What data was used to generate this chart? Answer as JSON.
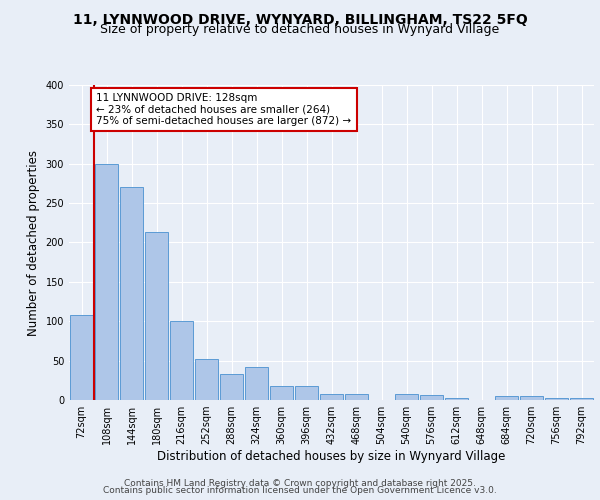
{
  "title_line1": "11, LYNNWOOD DRIVE, WYNYARD, BILLINGHAM, TS22 5FQ",
  "title_line2": "Size of property relative to detached houses in Wynyard Village",
  "xlabel": "Distribution of detached houses by size in Wynyard Village",
  "ylabel": "Number of detached properties",
  "bins": [
    "72sqm",
    "108sqm",
    "144sqm",
    "180sqm",
    "216sqm",
    "252sqm",
    "288sqm",
    "324sqm",
    "360sqm",
    "396sqm",
    "432sqm",
    "468sqm",
    "504sqm",
    "540sqm",
    "576sqm",
    "612sqm",
    "648sqm",
    "684sqm",
    "720sqm",
    "756sqm",
    "792sqm"
  ],
  "values": [
    108,
    300,
    270,
    213,
    100,
    52,
    33,
    42,
    18,
    18,
    7,
    8,
    0,
    8,
    6,
    3,
    0,
    5,
    5,
    2,
    2
  ],
  "bar_color": "#aec6e8",
  "bar_edge_color": "#5b9bd5",
  "vline_color": "#cc0000",
  "annotation_text": "11 LYNNWOOD DRIVE: 128sqm\n← 23% of detached houses are smaller (264)\n75% of semi-detached houses are larger (872) →",
  "annotation_box_color": "#ffffff",
  "annotation_box_edge": "#cc0000",
  "ylim": [
    0,
    400
  ],
  "yticks": [
    0,
    50,
    100,
    150,
    200,
    250,
    300,
    350,
    400
  ],
  "footer_line1": "Contains HM Land Registry data © Crown copyright and database right 2025.",
  "footer_line2": "Contains public sector information licensed under the Open Government Licence v3.0.",
  "bg_color": "#e8eef7",
  "plot_bg_color": "#e8eef7",
  "grid_color": "#ffffff",
  "title_fontsize": 10,
  "subtitle_fontsize": 9,
  "axis_label_fontsize": 8.5,
  "tick_fontsize": 7,
  "footer_fontsize": 6.5,
  "annotation_fontsize": 7.5
}
